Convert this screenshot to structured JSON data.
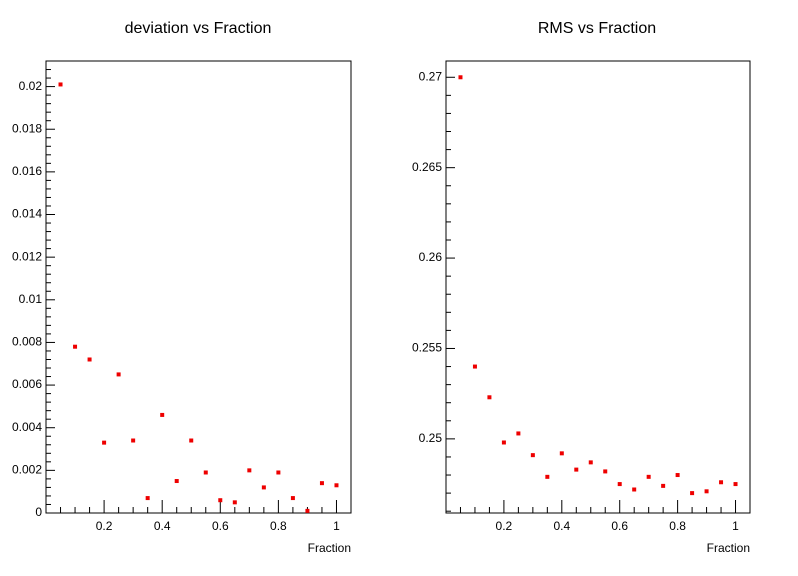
{
  "chart_data": [
    {
      "type": "scatter",
      "title": "deviation vs Fraction",
      "xlabel": "Fraction",
      "ylabel": "",
      "xlim": [
        0.0,
        1.05
      ],
      "ylim": [
        0,
        0.0212
      ],
      "xticks": [
        0.2,
        0.4,
        0.6,
        0.8,
        1
      ],
      "xtick_labels": [
        "0.2",
        "0.4",
        "0.6",
        "0.8",
        "1"
      ],
      "yticks": [
        0,
        0.002,
        0.004,
        0.006,
        0.008,
        0.01,
        0.012,
        0.014,
        0.016,
        0.018,
        0.02
      ],
      "ytick_labels": [
        "0",
        "0.002",
        "0.004",
        "0.006",
        "0.008",
        "0.01",
        "0.012",
        "0.014",
        "0.016",
        "0.018",
        "0.02"
      ],
      "marker_color": "#ee0000",
      "series": [
        {
          "name": "deviation",
          "x": [
            0.05,
            0.1,
            0.15,
            0.2,
            0.25,
            0.3,
            0.35,
            0.4,
            0.45,
            0.5,
            0.55,
            0.6,
            0.65,
            0.7,
            0.75,
            0.8,
            0.85,
            0.9,
            0.95,
            1.0
          ],
          "y": [
            0.0201,
            0.0078,
            0.0072,
            0.0033,
            0.0065,
            0.0034,
            0.0007,
            0.0046,
            0.0015,
            0.0034,
            0.0019,
            0.0006,
            0.0005,
            0.002,
            0.0012,
            0.0019,
            0.0007,
            0.0001,
            0.0014,
            0.0013
          ]
        }
      ]
    },
    {
      "type": "scatter",
      "title": "RMS vs Fraction",
      "xlabel": "Fraction",
      "ylabel": "",
      "xlim": [
        0.0,
        1.05
      ],
      "ylim": [
        0.2459,
        0.2709
      ],
      "xticks": [
        0.2,
        0.4,
        0.6,
        0.8,
        1
      ],
      "xtick_labels": [
        "0.2",
        "0.4",
        "0.6",
        "0.8",
        "1"
      ],
      "yticks": [
        0.25,
        0.255,
        0.26,
        0.265,
        0.27
      ],
      "ytick_labels": [
        "0.25",
        "0.255",
        "0.26",
        "0.265",
        "0.27"
      ],
      "marker_color": "#ee0000",
      "series": [
        {
          "name": "RMS",
          "x": [
            0.05,
            0.1,
            0.15,
            0.2,
            0.25,
            0.3,
            0.35,
            0.4,
            0.45,
            0.5,
            0.55,
            0.6,
            0.65,
            0.7,
            0.75,
            0.8,
            0.85,
            0.9,
            0.95,
            1.0
          ],
          "y": [
            0.27,
            0.254,
            0.2523,
            0.2498,
            0.2503,
            0.2491,
            0.2479,
            0.2492,
            0.2483,
            0.2487,
            0.2482,
            0.2475,
            0.2472,
            0.2479,
            0.2474,
            0.248,
            0.247,
            0.2471,
            0.2476,
            0.2475
          ]
        }
      ]
    }
  ]
}
